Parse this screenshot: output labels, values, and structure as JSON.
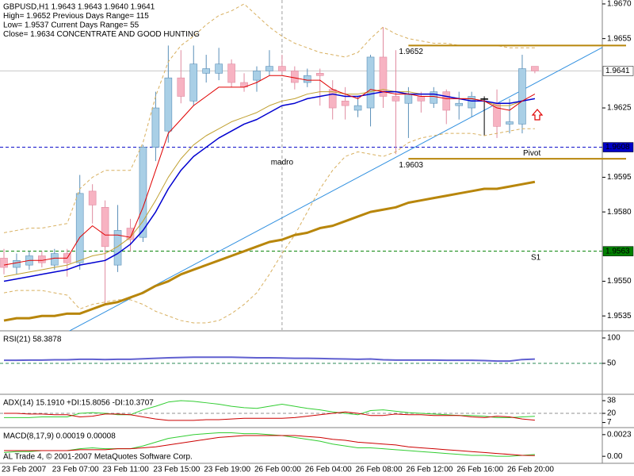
{
  "status_text": "AL Trade 4, © 2001-2007 MetaQuotes Software Corp.",
  "chart_data": [
    {
      "type": "candlestick",
      "info_lines": [
        "GBPUSD,H1  1.9643 1.9643 1.9640 1.9641",
        "High= 1.9652    Previous Days Range= 115",
        "Low= 1.9537    Current Days Range= 55",
        "Close= 1.9634   CONCENTRATE AND GOOD HUNTING"
      ],
      "categories": [
        "23 Feb 2007",
        null,
        null,
        null,
        "23 Feb 07:00",
        null,
        null,
        null,
        "23 Feb 11:00",
        null,
        null,
        null,
        "23 Feb 15:00",
        null,
        null,
        null,
        "23 Feb 19:00",
        null,
        null,
        null,
        "26 Feb 00:00",
        null,
        null,
        null,
        "26 Feb 04:00",
        null,
        null,
        null,
        "26 Feb 08:00",
        null,
        null,
        null,
        "26 Feb 12:00",
        null,
        null,
        null,
        "26 Feb 16:00",
        null,
        null,
        null,
        "26 Feb 20:00",
        null,
        null
      ],
      "open": [
        1.956,
        1.9556,
        1.9557,
        1.9561,
        1.9557,
        1.9562,
        1.9558,
        1.9589,
        1.9582,
        1.9557,
        1.9573,
        1.9569,
        1.9608,
        1.9615,
        1.9638,
        1.9628,
        1.964,
        1.964,
        1.9644,
        1.9636,
        1.9637,
        1.9641,
        1.9643,
        1.9641,
        1.9636,
        1.964,
        1.9633,
        1.9628,
        1.9624,
        1.9625,
        1.9647,
        1.963,
        1.9627,
        1.963,
        1.9627,
        1.9632,
        1.9626,
        1.9625,
        1.9629,
        1.9627,
        1.9618,
        1.9618,
        1.9643
      ],
      "high": [
        1.9564,
        1.9562,
        1.9563,
        1.9563,
        1.9564,
        1.9564,
        1.9596,
        1.9592,
        1.9585,
        1.9583,
        1.9577,
        1.9609,
        1.9632,
        1.9652,
        1.965,
        1.9652,
        1.9648,
        1.9651,
        1.9646,
        1.964,
        1.9643,
        1.965,
        1.9648,
        1.9643,
        1.9642,
        1.9642,
        1.9637,
        1.9634,
        1.963,
        1.9648,
        1.966,
        1.965,
        1.9634,
        1.9632,
        1.9634,
        1.9633,
        1.9632,
        1.9632,
        1.963,
        1.9633,
        1.9629,
        1.9648,
        1.9643
      ],
      "low": [
        1.9553,
        1.9553,
        1.9555,
        1.9556,
        1.9555,
        1.9552,
        1.9555,
        1.9575,
        1.954,
        1.9554,
        1.9563,
        1.9567,
        1.9602,
        1.961,
        1.9627,
        1.9626,
        1.9636,
        1.9637,
        1.9634,
        1.9632,
        1.9632,
        1.9639,
        1.964,
        1.9633,
        1.9634,
        1.9626,
        1.962,
        1.962,
        1.9621,
        1.9617,
        1.9625,
        1.9605,
        1.9612,
        1.9623,
        1.9625,
        1.9618,
        1.962,
        1.9621,
        1.9613,
        1.9612,
        1.9614,
        1.9614,
        1.964
      ],
      "close": [
        1.9556,
        1.9559,
        1.9561,
        1.9558,
        1.9562,
        1.9558,
        1.9588,
        1.9583,
        1.9565,
        1.9572,
        1.9568,
        1.9608,
        1.9625,
        1.9638,
        1.963,
        1.9644,
        1.9642,
        1.9644,
        1.9636,
        1.9634,
        1.9641,
        1.9643,
        1.9641,
        1.9636,
        1.9639,
        1.9639,
        1.9625,
        1.9626,
        1.9626,
        1.9647,
        1.963,
        1.9628,
        1.9631,
        1.9628,
        1.9632,
        1.9624,
        1.9627,
        1.963,
        1.9629,
        1.9617,
        1.9619,
        1.9642,
        1.9641
      ],
      "up_color": "#a9cfe6",
      "down_color": "#f7b3c2",
      "doji_color": "#000000",
      "series": [
        {
          "color": "#d8b060",
          "width": 1,
          "dashed": true,
          "values": [
            1.9571,
            1.9572,
            1.9573,
            1.9573,
            1.9574,
            1.9575,
            1.959,
            1.9595,
            1.9598,
            1.9598,
            1.9598,
            1.961,
            1.963,
            1.9645,
            1.9652,
            1.9656,
            1.9661,
            1.9665,
            1.9667,
            1.967,
            1.9665,
            1.966,
            1.9656,
            1.9653,
            1.9651,
            1.9649,
            1.9648,
            1.9647,
            1.9649,
            1.9655,
            1.966,
            1.9657,
            1.9655,
            1.9654,
            1.9653,
            1.9653,
            1.9652,
            1.9652,
            1.9652,
            1.9652,
            1.9651,
            1.9651,
            1.9651
          ]
        },
        {
          "color": "#d8b060",
          "width": 1,
          "dashed": true,
          "values": [
            1.9545,
            1.9546,
            1.9546,
            1.9546,
            1.9545,
            1.9544,
            1.9538,
            1.954,
            1.9541,
            1.9542,
            1.9542,
            1.954,
            1.9537,
            1.9535,
            1.9533,
            1.9532,
            1.9532,
            1.9533,
            1.9536,
            1.954,
            1.9545,
            1.9553,
            1.9562,
            1.957,
            1.958,
            1.959,
            1.9598,
            1.9604,
            1.9606,
            1.9605,
            1.9604,
            1.9606,
            1.961,
            1.9612,
            1.9613,
            1.9614,
            1.9614,
            1.9614,
            1.9613,
            1.9614,
            1.9615,
            1.9616,
            1.9616
          ]
        },
        {
          "color": "#b8860b",
          "width": 3,
          "dashed": false,
          "values": [
            1.9533,
            1.9534,
            1.9534,
            1.9535,
            1.9535,
            1.9536,
            1.9536,
            1.9538,
            1.954,
            1.9541,
            1.9543,
            1.9545,
            1.9548,
            1.955,
            1.9553,
            1.9555,
            1.9557,
            1.9559,
            1.9561,
            1.9563,
            1.9565,
            1.9567,
            1.9568,
            1.957,
            1.9571,
            1.9573,
            1.9574,
            1.9576,
            1.9578,
            1.958,
            1.9581,
            1.9582,
            1.9584,
            1.9585,
            1.9586,
            1.9587,
            1.9588,
            1.9589,
            1.959,
            1.959,
            1.9591,
            1.9592,
            1.9593
          ]
        },
        {
          "color": "#c0a030",
          "width": 1,
          "dashed": false,
          "values": [
            1.9552,
            1.9553,
            1.9554,
            1.9555,
            1.9556,
            1.9557,
            1.9559,
            1.9561,
            1.9562,
            1.9565,
            1.9569,
            1.9576,
            1.9585,
            1.9595,
            1.9603,
            1.9609,
            1.9613,
            1.9616,
            1.9619,
            1.9621,
            1.9623,
            1.9626,
            1.9628,
            1.9629,
            1.9631,
            1.9632,
            1.9632,
            1.9631,
            1.9631,
            1.9632,
            1.9633,
            1.9632,
            1.9632,
            1.9631,
            1.9631,
            1.963,
            1.9629,
            1.9629,
            1.9628,
            1.9626,
            1.9626,
            1.9628,
            1.9629
          ]
        },
        {
          "color": "#0000d0",
          "width": 1.5,
          "dashed": false,
          "values": [
            1.955,
            1.9551,
            1.9552,
            1.9553,
            1.9554,
            1.9555,
            1.9557,
            1.9558,
            1.9559,
            1.9562,
            1.9566,
            1.9572,
            1.958,
            1.959,
            1.9598,
            1.9604,
            1.9608,
            1.9612,
            1.9615,
            1.9618,
            1.962,
            1.9623,
            1.9626,
            1.9627,
            1.9629,
            1.963,
            1.9631,
            1.963,
            1.963,
            1.9631,
            1.9632,
            1.9632,
            1.9631,
            1.9631,
            1.9631,
            1.963,
            1.9629,
            1.9628,
            1.9628,
            1.9627,
            1.9627,
            1.9628,
            1.9629
          ]
        },
        {
          "color": "#e00000",
          "width": 1,
          "dashed": false,
          "values": [
            1.9557,
            1.9558,
            1.9559,
            1.9559,
            1.956,
            1.956,
            1.9569,
            1.9574,
            1.957,
            1.957,
            1.9569,
            1.9582,
            1.9598,
            1.9614,
            1.962,
            1.9626,
            1.963,
            1.9634,
            1.9634,
            1.9634,
            1.9636,
            1.9639,
            1.9639,
            1.9638,
            1.9637,
            1.9637,
            1.9633,
            1.9631,
            1.9629,
            1.9633,
            1.9632,
            1.9631,
            1.9631,
            1.963,
            1.963,
            1.9629,
            1.9629,
            1.9629,
            1.9628,
            1.9625,
            1.9624,
            1.9628,
            1.9631
          ]
        }
      ],
      "ylim": [
        1.95289,
        1.96717
      ],
      "yticks": [
        {
          "value": 1.967,
          "label": "1.9670"
        },
        1.9655,
        1.9625,
        1.9595,
        {
          "value": 1.958,
          "label": "1.9580"
        },
        {
          "value": 1.955,
          "label": "1.9550"
        },
        1.9535
      ],
      "levels": [
        {
          "value": 1.9641,
          "color": "#c8c8c8",
          "dashed": false,
          "tag_fill": "#ffffff",
          "tag_text": "#000000"
        },
        {
          "value": 1.9608,
          "color": "#0000c8",
          "dashed": true,
          "tag_fill": "#0000c8",
          "tag_text": "#ffffff",
          "label": "Pivot",
          "label_color": "#0000c8"
        },
        {
          "value": 1.9563,
          "color": "#008000",
          "dashed": true,
          "tag_fill": "#008000",
          "tag_text": "#ffffff",
          "label": "S1",
          "label_color": "#808080"
        }
      ],
      "segments": [
        {
          "value": 1.9652,
          "from": 32,
          "color": "#b8860b"
        },
        {
          "value": 1.9603,
          "from": 32,
          "color": "#b8860b"
        }
      ],
      "vline": {
        "x": 22,
        "label": "madro",
        "color": "#b0a050"
      },
      "trend_line": {
        "x": [
          5,
          49
        ],
        "y": [
          1.9528,
          1.9656
        ],
        "color": "#3090e0"
      }
    },
    {
      "type": "line",
      "title": "RSI(21) 58.3878",
      "series": [
        {
          "color": "#6060d0",
          "width": 2,
          "values": [
            56,
            56,
            56.5,
            56.5,
            57,
            57,
            58,
            58,
            57.5,
            58,
            58,
            59,
            60,
            61,
            61.5,
            62,
            62,
            62,
            62,
            61.5,
            61,
            61,
            60.5,
            60,
            60,
            59.5,
            59,
            58.5,
            58,
            58.5,
            57,
            56.5,
            56.5,
            56.5,
            56.5,
            56,
            56,
            56,
            55.5,
            54.5,
            54.5,
            57.5,
            58.3878
          ]
        }
      ],
      "ylim": [
        -9.4,
        112.5
      ],
      "yticks": [
        50,
        100
      ],
      "levels": [
        {
          "value": 50,
          "color": "#2e8b57",
          "dashed": true
        }
      ]
    },
    {
      "type": "line",
      "title": "ADX(14) 15.1910 +DI:15.8056 -DI:10.3707",
      "series": [
        {
          "color": "#32cd32",
          "width": 1,
          "values": [
            14,
            14,
            14,
            15,
            15,
            15,
            20,
            21,
            20,
            18,
            18,
            25,
            30,
            36,
            38,
            37,
            35,
            33,
            30,
            28,
            27,
            30,
            33,
            30,
            27,
            25,
            22,
            20,
            18,
            24,
            25,
            23,
            21,
            20,
            19,
            18,
            17,
            17,
            16,
            14,
            14,
            15,
            15.8056
          ]
        },
        {
          "color": "#cc0000",
          "width": 1,
          "values": [
            20,
            20,
            19,
            19,
            18,
            18,
            15,
            16,
            19,
            19,
            18,
            15,
            12,
            10,
            10,
            10,
            11,
            11,
            12,
            13,
            13,
            13,
            13,
            14,
            16,
            18,
            20,
            22,
            20,
            17,
            17,
            19,
            18,
            18,
            17,
            17,
            17,
            15,
            14,
            16,
            15,
            12,
            10.3707
          ]
        }
      ],
      "ylim": [
        0.9,
        45.9
      ],
      "yticks": [
        7,
        20,
        38
      ],
      "levels": [
        {
          "value": 20,
          "color": "#909090",
          "dashed": true
        }
      ]
    },
    {
      "type": "line",
      "title": "MACD(8,17,9) 0.00019 0.00008",
      "series": [
        {
          "color": "#32cd32",
          "width": 1,
          "values": [
            0.0004,
            0.0005,
            0.0005,
            0.0006,
            0.0006,
            0.0006,
            0.0008,
            0.0009,
            0.0008,
            0.0008,
            0.0008,
            0.0011,
            0.0015,
            0.0019,
            0.0021,
            0.0023,
            0.0024,
            0.0025,
            0.0025,
            0.0024,
            0.0024,
            0.0023,
            0.0022,
            0.002,
            0.0018,
            0.0016,
            0.0013,
            0.0011,
            0.0009,
            0.0009,
            0.0008,
            0.0007,
            0.0006,
            0.0005,
            0.0004,
            0.0003,
            0.0002,
            0.0001,
            0.0001,
            0,
            0,
            0.0001,
            0.00019
          ]
        },
        {
          "color": "#cc0000",
          "width": 1,
          "values": [
            0.0006,
            0.0006,
            0.0006,
            0.0006,
            0.0006,
            0.0006,
            0.0007,
            0.0007,
            0.0007,
            0.0008,
            0.0008,
            0.0009,
            0.001,
            0.0012,
            0.0014,
            0.0016,
            0.0018,
            0.002,
            0.0021,
            0.0022,
            0.0022,
            0.0022,
            0.0022,
            0.0022,
            0.0021,
            0.002,
            0.0018,
            0.0017,
            0.0015,
            0.0014,
            0.0013,
            0.0012,
            0.001,
            0.0009,
            0.0008,
            0.0007,
            0.0006,
            0.0005,
            0.0004,
            0.0003,
            0.0002,
            0.0001,
            8e-05
          ]
        }
      ],
      "ylim": [
        -0.00066,
        0.00296
      ],
      "yticks": [
        0.0023,
        {
          "value": 0,
          "label": "0.00"
        }
      ],
      "levels": []
    }
  ]
}
